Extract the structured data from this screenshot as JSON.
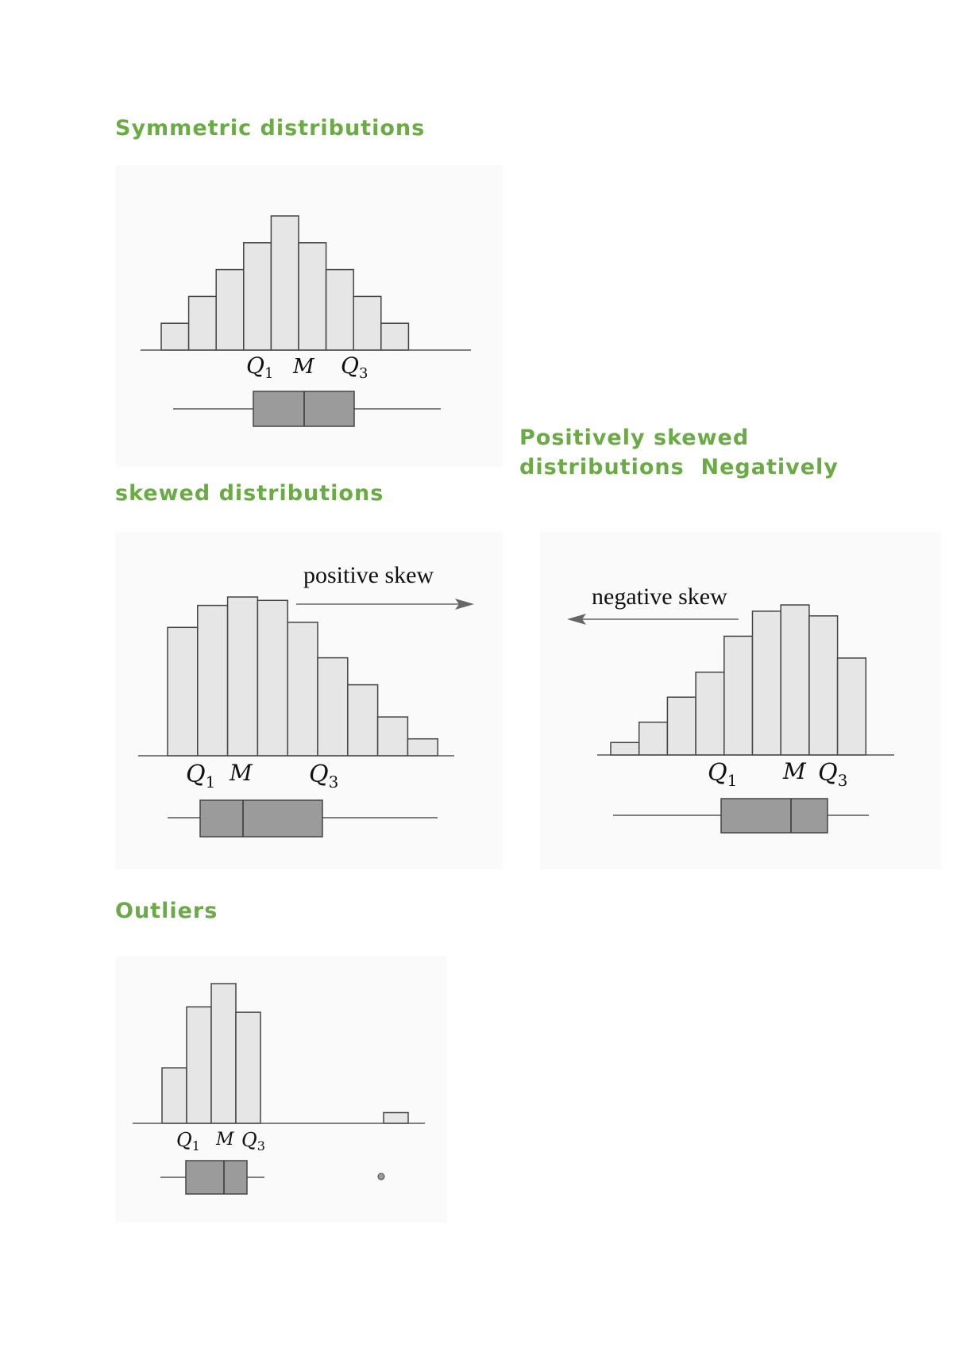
{
  "headings": {
    "symmetric": "Symmetric distributions",
    "positive_line1": "Positively skewed",
    "positive_line2": "distributions",
    "negative_word": "Negatively",
    "negative_cont": "skewed distributions",
    "outliers": "Outliers"
  },
  "chart_data": [
    {
      "type": "bar",
      "values": [
        1,
        2,
        3,
        4,
        5,
        4,
        3,
        2,
        1
      ],
      "quartile_labels": [
        "Q1",
        "M",
        "Q3"
      ]
    },
    {
      "type": "bar",
      "values": [
        7.6,
        8.9,
        9.4,
        9.2,
        7.9,
        5.8,
        4.2,
        2.3,
        1.0
      ],
      "quartile_labels": [
        "Q1",
        "M",
        "Q3"
      ],
      "annotation": "positive skew"
    },
    {
      "type": "bar",
      "values": [
        0.8,
        2.1,
        3.7,
        5.3,
        7.6,
        9.2,
        9.6,
        8.9,
        6.2
      ],
      "quartile_labels": [
        "Q1",
        "M",
        "Q3"
      ],
      "annotation": "negative skew"
    },
    {
      "type": "bar",
      "values": [
        3.1,
        6.5,
        7.8,
        6.2,
        0,
        0,
        0,
        0,
        0,
        0.6
      ],
      "quartile_labels": [
        "Q1",
        "M",
        "Q3"
      ]
    }
  ]
}
